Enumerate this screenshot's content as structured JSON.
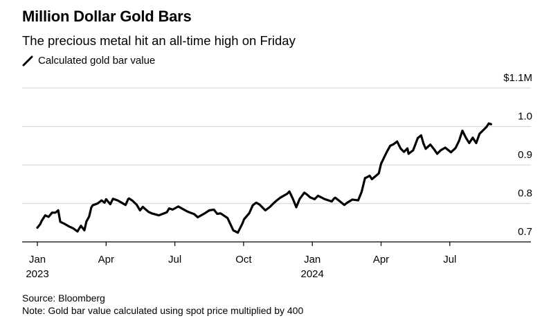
{
  "header": {
    "title": "Million Dollar Gold Bars",
    "subtitle": "The precious metal hit an all-time high on Friday",
    "legend_label": "Calculated gold bar value"
  },
  "footer": {
    "source": "Source: Bloomberg",
    "note": "Note: Gold bar value calculated using spot price multiplied by 400"
  },
  "chart_data": {
    "type": "line",
    "title": "Million Dollar Gold Bars",
    "subtitle": "The precious metal hit an all-time high on Friday",
    "xlabel": "",
    "ylabel": "",
    "ylim": [
      0.7,
      1.1
    ],
    "xlim": [
      "2023-01",
      "2024-09-06"
    ],
    "grid": true,
    "legend_position": "top-left",
    "y_ticks": [
      {
        "value": 1.1,
        "label": "$1.1M"
      },
      {
        "value": 1.0,
        "label": "1.0"
      },
      {
        "value": 0.9,
        "label": "0.9"
      },
      {
        "value": 0.8,
        "label": "0.8"
      },
      {
        "value": 0.7,
        "label": "0.7"
      }
    ],
    "x_ticks": [
      {
        "month": 0,
        "label": "Jan",
        "sublabel": "2023"
      },
      {
        "month": 3,
        "label": "Apr",
        "sublabel": ""
      },
      {
        "month": 6,
        "label": "Jul",
        "sublabel": ""
      },
      {
        "month": 9,
        "label": "Oct",
        "sublabel": ""
      },
      {
        "month": 12,
        "label": "Jan",
        "sublabel": "2024"
      },
      {
        "month": 15,
        "label": "Apr",
        "sublabel": ""
      },
      {
        "month": 18,
        "label": "Jul",
        "sublabel": ""
      }
    ],
    "series": [
      {
        "name": "Calculated gold bar value",
        "color": "#000000",
        "x_months": [
          0.0,
          0.12,
          0.19,
          0.34,
          0.49,
          0.64,
          0.79,
          0.91,
          1.0,
          1.15,
          1.39,
          1.57,
          1.75,
          1.9,
          2.05,
          2.14,
          2.26,
          2.35,
          2.41,
          2.63,
          2.8,
          2.93,
          3.0,
          3.18,
          3.3,
          3.5,
          3.85,
          3.96,
          4.0,
          4.15,
          4.33,
          4.48,
          4.6,
          4.85,
          5.0,
          5.3,
          5.65,
          5.75,
          5.9,
          6.15,
          6.3,
          6.55,
          6.85,
          7.0,
          7.3,
          7.5,
          7.7,
          7.85,
          8.0,
          8.3,
          8.55,
          8.75,
          8.95,
          9.02,
          9.25,
          9.4,
          9.55,
          9.7,
          9.95,
          10.15,
          10.3,
          10.45,
          10.6,
          10.9,
          11.0,
          11.15,
          11.3,
          11.45,
          11.55,
          11.65,
          11.75,
          11.9,
          12.1,
          12.25,
          12.55,
          12.85,
          12.95,
          13.0,
          13.15,
          13.4,
          13.5,
          13.75,
          14.0,
          14.15,
          14.3,
          14.35,
          14.5,
          14.6,
          14.9,
          15.0,
          15.25,
          15.4,
          15.55,
          15.7,
          15.85,
          16.0,
          16.15,
          16.2,
          16.4,
          16.6,
          16.75,
          16.85,
          16.95,
          17.15,
          17.3,
          17.45,
          17.6,
          17.8,
          18.05,
          18.25,
          18.4,
          18.55,
          18.7,
          18.85,
          19.0,
          19.15,
          19.3,
          19.45,
          19.6,
          19.7,
          19.8
        ],
        "values": [
          0.737,
          0.746,
          0.755,
          0.769,
          0.765,
          0.776,
          0.776,
          0.782,
          0.752,
          0.748,
          0.74,
          0.735,
          0.727,
          0.742,
          0.73,
          0.753,
          0.766,
          0.789,
          0.795,
          0.8,
          0.808,
          0.802,
          0.811,
          0.798,
          0.812,
          0.808,
          0.796,
          0.811,
          0.813,
          0.807,
          0.797,
          0.782,
          0.791,
          0.778,
          0.774,
          0.769,
          0.777,
          0.787,
          0.784,
          0.792,
          0.787,
          0.779,
          0.772,
          0.764,
          0.774,
          0.782,
          0.784,
          0.773,
          0.774,
          0.762,
          0.73,
          0.724,
          0.748,
          0.759,
          0.775,
          0.795,
          0.802,
          0.797,
          0.782,
          0.791,
          0.8,
          0.808,
          0.815,
          0.825,
          0.831,
          0.812,
          0.79,
          0.812,
          0.82,
          0.828,
          0.824,
          0.816,
          0.811,
          0.82,
          0.811,
          0.805,
          0.813,
          0.815,
          0.808,
          0.796,
          0.801,
          0.81,
          0.808,
          0.83,
          0.866,
          0.867,
          0.872,
          0.863,
          0.878,
          0.903,
          0.934,
          0.95,
          0.954,
          0.961,
          0.943,
          0.934,
          0.943,
          0.929,
          0.938,
          0.97,
          0.977,
          0.956,
          0.942,
          0.953,
          0.942,
          0.929,
          0.938,
          0.945,
          0.933,
          0.944,
          0.962,
          0.989,
          0.971,
          0.957,
          0.971,
          0.957,
          0.981,
          0.99,
          0.999,
          1.008,
          1.006
        ]
      }
    ]
  }
}
